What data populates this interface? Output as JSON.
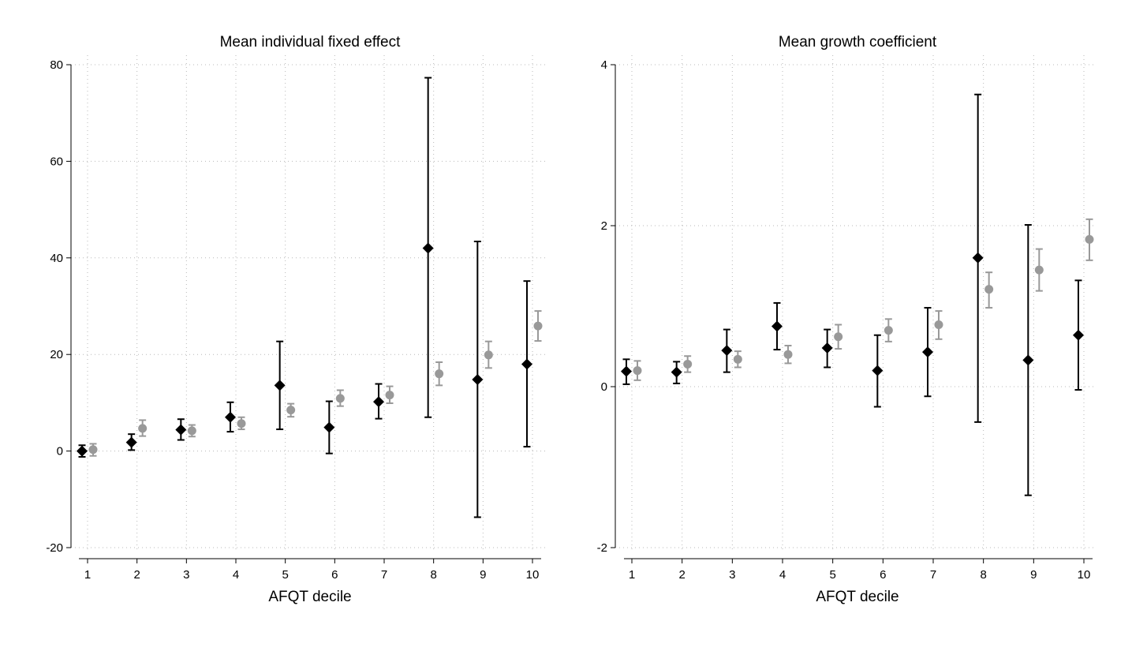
{
  "colors": {
    "series_black": "#000000",
    "series_gray": "#999999",
    "grid": "#b8b8b8"
  },
  "chart_data": [
    {
      "type": "scatter",
      "title": "Mean individual fixed effect",
      "xlabel": "AFQT decile",
      "ylabel": "",
      "categories": [
        "1",
        "2",
        "3",
        "4",
        "5",
        "6",
        "7",
        "8",
        "9",
        "10"
      ],
      "ylim": [
        -20,
        80
      ],
      "yticks": [
        "-20",
        "0",
        "20",
        "40",
        "60",
        "80"
      ],
      "grid": true,
      "series": [
        {
          "name": "black diamonds",
          "marker": "diamond",
          "color": "#000000",
          "values": [
            0,
            1.8,
            4.4,
            7,
            13.6,
            4.9,
            10.2,
            42,
            14.8,
            18
          ],
          "ci_low": [
            -1.2,
            0.2,
            2.3,
            4,
            4.5,
            -0.5,
            6.7,
            7,
            -13.7,
            0.9
          ],
          "ci_high": [
            1.2,
            3.5,
            6.6,
            10.1,
            22.7,
            10.3,
            13.9,
            77.3,
            43.4,
            35.2
          ]
        },
        {
          "name": "gray circles",
          "marker": "circle",
          "color": "#999999",
          "values": [
            0.3,
            4.7,
            4.2,
            5.7,
            8.5,
            10.9,
            11.6,
            16,
            19.9,
            25.9
          ],
          "ci_low": [
            -1,
            3.1,
            3,
            4.5,
            7.1,
            9.3,
            9.9,
            13.6,
            17.2,
            22.8
          ],
          "ci_high": [
            1.5,
            6.4,
            5.4,
            7,
            9.8,
            12.6,
            13.4,
            18.4,
            22.7,
            29
          ]
        }
      ]
    },
    {
      "type": "scatter",
      "title": "Mean growth coefficient",
      "xlabel": "AFQT decile",
      "ylabel": "",
      "categories": [
        "1",
        "2",
        "3",
        "4",
        "5",
        "6",
        "7",
        "8",
        "9",
        "10"
      ],
      "ylim": [
        -2,
        4
      ],
      "yticks": [
        "-2",
        "0",
        "2",
        "4"
      ],
      "grid": true,
      "series": [
        {
          "name": "black diamonds",
          "marker": "diamond",
          "color": "#000000",
          "values": [
            0.19,
            0.18,
            0.45,
            0.75,
            0.48,
            0.2,
            0.43,
            1.6,
            0.33,
            0.64
          ],
          "ci_low": [
            0.03,
            0.04,
            0.18,
            0.46,
            0.24,
            -0.25,
            -0.12,
            -0.44,
            -1.35,
            -0.04
          ],
          "ci_high": [
            0.34,
            0.31,
            0.71,
            1.04,
            0.71,
            0.64,
            0.98,
            3.63,
            2.01,
            1.32
          ]
        },
        {
          "name": "gray circles",
          "marker": "circle",
          "color": "#999999",
          "values": [
            0.2,
            0.28,
            0.34,
            0.4,
            0.62,
            0.7,
            0.77,
            1.21,
            1.45,
            1.83
          ],
          "ci_low": [
            0.08,
            0.18,
            0.24,
            0.29,
            0.47,
            0.56,
            0.59,
            0.98,
            1.19,
            1.57
          ],
          "ci_high": [
            0.32,
            0.38,
            0.44,
            0.51,
            0.77,
            0.84,
            0.94,
            1.42,
            1.71,
            2.08
          ]
        }
      ]
    }
  ]
}
